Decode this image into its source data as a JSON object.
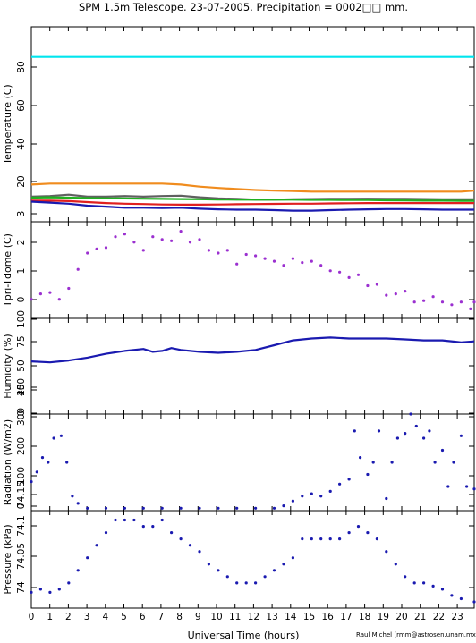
{
  "title": "SPM 1.5m Telescope. 23-07-2005. Precipitation = 0002□□ mm.",
  "xlabel": "Universal Time (hours)",
  "credit": "Raul Michel (rmm@astrosen.unam.mx)",
  "x_ticks": [
    "0",
    "1",
    "2",
    "3",
    "4",
    "5",
    "6",
    "7",
    "8",
    "9",
    "10",
    "11",
    "12",
    "13",
    "14",
    "15",
    "16",
    "17",
    "18",
    "19",
    "20",
    "21",
    "22",
    "23"
  ],
  "chart_data": [
    {
      "type": "line",
      "ylabel": "Temperature (C)",
      "xlim": [
        0,
        23.7
      ],
      "ylim": [
        5,
        102
      ],
      "yticks": [
        "20",
        "40",
        "60",
        "80"
      ],
      "series": [
        {
          "color": "#00e5ee",
          "x": [
            0,
            4,
            8,
            12,
            16,
            20,
            23.7
          ],
          "y": [
            87,
            87,
            87,
            87,
            87,
            87,
            87
          ]
        },
        {
          "color": "#f08c1e",
          "x": [
            0,
            1,
            2,
            3,
            4,
            5,
            6,
            7,
            8,
            9,
            10,
            11,
            12,
            13,
            14,
            15,
            16,
            17,
            18,
            19,
            20,
            21,
            22,
            23,
            23.7
          ],
          "y": [
            23.5,
            24,
            24,
            24,
            24,
            24,
            24,
            24,
            23.5,
            22.5,
            21.8,
            21.3,
            20.8,
            20.5,
            20.3,
            20,
            20,
            20,
            20,
            20,
            20,
            20,
            20,
            20,
            20.5
          ]
        },
        {
          "color": "#606060",
          "x": [
            0,
            1,
            2,
            3,
            4,
            5,
            6,
            7,
            8,
            9,
            10,
            11,
            12,
            13,
            14,
            15,
            16,
            17,
            18,
            19,
            20,
            21,
            22,
            23,
            23.7
          ],
          "y": [
            17.5,
            17.8,
            18.5,
            17.5,
            17.5,
            17.8,
            17.5,
            17.8,
            18,
            17.2,
            16.6,
            16.4,
            16,
            16,
            16.2,
            16.3,
            16.4,
            16.4,
            16.5,
            16.4,
            16.4,
            16.3,
            16.2,
            16.2,
            16.2
          ]
        },
        {
          "color": "#20b020",
          "x": [
            0,
            1,
            2,
            3,
            4,
            5,
            6,
            7,
            8,
            9,
            10,
            11,
            12,
            13,
            14,
            15,
            16,
            17,
            18,
            19,
            20,
            21,
            22,
            23,
            23.7
          ],
          "y": [
            17,
            17.2,
            17,
            16.8,
            16.7,
            16.6,
            16.5,
            16.4,
            16.3,
            16.2,
            16.1,
            16,
            16,
            16,
            16,
            15.9,
            15.9,
            15.8,
            15.8,
            15.7,
            15.6,
            15.5,
            15.5,
            15.4,
            15.4
          ]
        },
        {
          "color": "#e02020",
          "x": [
            0,
            1,
            2,
            3,
            4,
            5,
            6,
            7,
            8,
            9,
            10,
            11,
            12,
            13,
            14,
            15,
            16,
            17,
            18,
            19,
            20,
            21,
            22,
            23,
            23.7
          ],
          "y": [
            15.5,
            15.5,
            15.3,
            14.8,
            14.3,
            14,
            13.8,
            13.6,
            13.5,
            13.5,
            13.6,
            13.7,
            13.8,
            13.9,
            14,
            14,
            14.1,
            14.2,
            14.3,
            14.3,
            14.3,
            14.3,
            14.3,
            14.3,
            14.3
          ]
        },
        {
          "color": "#1a1ab0",
          "x": [
            0,
            1,
            2,
            3,
            4,
            5,
            6,
            7,
            8,
            9,
            10,
            11,
            12,
            13,
            14,
            15,
            16,
            17,
            18,
            19,
            20,
            21,
            22,
            23,
            23.7
          ],
          "y": [
            15,
            14.5,
            14,
            13,
            12.5,
            12,
            12,
            11.8,
            12,
            11.5,
            11.2,
            11,
            11,
            10.8,
            10.5,
            10.5,
            10.8,
            11,
            11.2,
            11.3,
            11.3,
            11.2,
            11,
            11,
            11
          ]
        }
      ]
    },
    {
      "type": "scatter",
      "ylabel": "Tpri-Tdome (C)",
      "xlim": [
        0,
        23.7
      ],
      "ylim": [
        -0.5,
        3.05
      ],
      "yticks": [
        "0",
        "1",
        "2",
        "3"
      ],
      "series": [
        {
          "color": "#9b30d0",
          "x": [
            0,
            0.5,
            1,
            1.5,
            2,
            2.5,
            3,
            3.5,
            4,
            4.5,
            5,
            5.5,
            6,
            6.5,
            7,
            7.5,
            8,
            8.5,
            9,
            9.5,
            10,
            10.5,
            11,
            11.5,
            12,
            12.5,
            13,
            13.5,
            14,
            14.5,
            15,
            15.5,
            16,
            16.5,
            17,
            17.5,
            18,
            18.5,
            19,
            19.5,
            20,
            20.5,
            21,
            21.5,
            22,
            22.5,
            23,
            23.5,
            23.7
          ],
          "y": [
            0.2,
            0.4,
            0.45,
            0.2,
            0.6,
            1.3,
            1.9,
            2.05,
            2.1,
            2.5,
            2.6,
            2.3,
            2.0,
            2.5,
            2.4,
            2.35,
            2.7,
            2.3,
            2.4,
            2.0,
            1.9,
            2.0,
            1.5,
            1.85,
            1.8,
            1.7,
            1.6,
            1.45,
            1.7,
            1.55,
            1.6,
            1.45,
            1.25,
            1.2,
            1.0,
            1.1,
            0.7,
            0.75,
            0.35,
            0.4,
            0.5,
            0.1,
            0.15,
            0.3,
            0.1,
            0.0,
            0.1,
            -0.15,
            0.1
          ]
        }
      ]
    },
    {
      "type": "line",
      "ylabel": "Humidity (%)",
      "xlim": [
        0,
        23.7
      ],
      "ylim": [
        0,
        100
      ],
      "yticks": [
        "0",
        "25",
        "50",
        "75",
        "100"
      ],
      "series": [
        {
          "color": "#1a1ab0",
          "x": [
            0,
            1,
            2,
            3,
            4,
            5,
            6,
            6.5,
            7,
            7.5,
            8,
            9,
            10,
            11,
            12,
            13,
            14,
            15,
            16,
            17,
            18,
            19,
            20,
            21,
            22,
            23,
            23.7
          ],
          "y": [
            55,
            54,
            56,
            59,
            63,
            66,
            68,
            65,
            66,
            69,
            67,
            65,
            64,
            65,
            67,
            72,
            77,
            79,
            80,
            79,
            79,
            79,
            78,
            77,
            77,
            75,
            76
          ]
        }
      ]
    },
    {
      "type": "scatter",
      "ylabel": "Radiation (W/m2)",
      "xlim": [
        0,
        23.7
      ],
      "ylim": [
        0,
        400
      ],
      "yticks": [
        "0",
        "100",
        "200",
        "300",
        "400"
      ],
      "series": [
        {
          "color": "#1a1ab0",
          "x": [
            0,
            0.3,
            0.6,
            0.9,
            1.2,
            1.6,
            1.9,
            2.2,
            2.5,
            3,
            4,
            5,
            6,
            7,
            8,
            9,
            10,
            11,
            12,
            13,
            13.5,
            14,
            14.5,
            15,
            15.5,
            16,
            16.5,
            17,
            17.3,
            17.6,
            18,
            18.3,
            18.6,
            19,
            19.3,
            19.6,
            20,
            20.3,
            20.6,
            21,
            21.3,
            21.6,
            22,
            22.3,
            22.6,
            23,
            23.3,
            23.7
          ],
          "y": [
            120,
            160,
            220,
            200,
            300,
            310,
            200,
            60,
            30,
            10,
            10,
            10,
            10,
            10,
            10,
            10,
            10,
            10,
            10,
            10,
            20,
            40,
            60,
            70,
            60,
            80,
            110,
            130,
            330,
            220,
            150,
            200,
            330,
            50,
            200,
            300,
            320,
            400,
            350,
            300,
            330,
            200,
            250,
            100,
            200,
            310,
            100,
            90
          ]
        }
      ]
    },
    {
      "type": "scatter",
      "ylabel": "Pressure (kPa)",
      "xlim": [
        0,
        23.7
      ],
      "ylim": [
        74.01,
        74.165
      ],
      "yticks": [
        "74",
        "74.05",
        "74.1",
        "74.15"
      ],
      "series": [
        {
          "color": "#1a1ab0",
          "x": [
            0,
            0.5,
            1,
            1.5,
            2,
            2.5,
            3,
            3.5,
            4,
            4.5,
            5,
            5.5,
            6,
            6.5,
            7,
            7.5,
            8,
            8.5,
            9,
            9.5,
            10,
            10.5,
            11,
            11.5,
            12,
            12.5,
            13,
            13.5,
            14,
            14.5,
            15,
            15.5,
            16,
            16.5,
            17,
            17.5,
            18,
            18.5,
            19,
            19.5,
            20,
            20.5,
            21,
            21.5,
            22,
            22.5,
            23,
            23.7
          ],
          "y": [
            74.035,
            74.04,
            74.035,
            74.04,
            74.05,
            74.07,
            74.09,
            74.11,
            74.13,
            74.15,
            74.15,
            74.15,
            74.14,
            74.14,
            74.15,
            74.13,
            74.12,
            74.11,
            74.1,
            74.08,
            74.07,
            74.06,
            74.05,
            74.05,
            74.05,
            74.06,
            74.07,
            74.08,
            74.09,
            74.12,
            74.12,
            74.12,
            74.12,
            74.12,
            74.13,
            74.14,
            74.13,
            74.12,
            74.1,
            74.08,
            74.06,
            74.05,
            74.05,
            74.045,
            74.04,
            74.03,
            74.025,
            74.02
          ]
        }
      ]
    }
  ]
}
